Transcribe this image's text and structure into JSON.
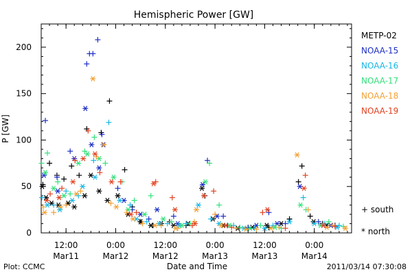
{
  "chart_data": {
    "type": "scatter",
    "title": "Hemispheric Power [GW]",
    "xlabel": "Date and Time",
    "ylabel": "P [GW]",
    "xlim": [
      "2011-03-11T06:00",
      "2011-03-14T09:00"
    ],
    "ylim": [
      0,
      225
    ],
    "yticks": [
      0,
      50,
      100,
      150,
      200
    ],
    "xticks": [
      {
        "t": "2011-03-11T12:00",
        "time": "12:00",
        "date": "Mar11"
      },
      {
        "t": "2011-03-12T00:00",
        "time": "0:00",
        "date": "Mar12"
      },
      {
        "t": "2011-03-12T12:00",
        "time": "12:00",
        "date": "Mar12"
      },
      {
        "t": "2011-03-13T00:00",
        "time": "0:00",
        "date": "Mar13"
      },
      {
        "t": "2011-03-13T12:00",
        "time": "12:00",
        "date": "Mar13"
      },
      {
        "t": "2011-03-14T00:00",
        "time": "0:00",
        "date": "Mar14"
      }
    ],
    "hemisphere_markers": [
      {
        "symbol": "+",
        "label": "south"
      },
      {
        "symbol": "*",
        "label": "north"
      }
    ],
    "series": [
      {
        "name": "METP-02",
        "color": "#000000",
        "south": [
          {
            "t": "2011-03-11T06:24",
            "v": 52
          },
          {
            "t": "2011-03-11T08:00",
            "v": 75
          },
          {
            "t": "2011-03-11T09:48",
            "v": 62
          },
          {
            "t": "2011-03-11T11:30",
            "v": 58
          },
          {
            "t": "2011-03-11T13:20",
            "v": 72
          },
          {
            "t": "2011-03-11T15:10",
            "v": 62
          },
          {
            "t": "2011-03-11T17:00",
            "v": 112
          },
          {
            "t": "2011-03-11T20:30",
            "v": 108
          },
          {
            "t": "2011-03-11T22:30",
            "v": 142
          },
          {
            "t": "2011-03-12T02:10",
            "v": 68
          },
          {
            "t": "2011-03-12T04:00",
            "v": 28
          },
          {
            "t": "2011-03-12T06:00",
            "v": 12
          },
          {
            "t": "2011-03-12T09:00",
            "v": 8
          },
          {
            "t": "2011-03-12T13:00",
            "v": 12
          },
          {
            "t": "2011-03-12T17:00",
            "v": 8
          },
          {
            "t": "2011-03-12T21:30",
            "v": 40
          },
          {
            "t": "2011-03-13T03:00",
            "v": 8
          },
          {
            "t": "2011-03-13T08:00",
            "v": 5
          },
          {
            "t": "2011-03-13T13:00",
            "v": 6
          },
          {
            "t": "2011-03-13T18:00",
            "v": 15
          },
          {
            "t": "2011-03-13T20:10",
            "v": 55
          },
          {
            "t": "2011-03-13T21:00",
            "v": 72
          },
          {
            "t": "2011-03-13T23:00",
            "v": 18
          },
          {
            "t": "2011-03-14T02:00",
            "v": 10
          },
          {
            "t": "2011-03-14T05:00",
            "v": 8
          }
        ],
        "north": [
          {
            "t": "2011-03-11T06:15",
            "v": 50
          },
          {
            "t": "2011-03-11T07:10",
            "v": 38
          },
          {
            "t": "2011-03-11T08:30",
            "v": 32
          },
          {
            "t": "2011-03-11T10:10",
            "v": 30
          },
          {
            "t": "2011-03-11T12:30",
            "v": 32
          },
          {
            "t": "2011-03-11T14:00",
            "v": 28
          },
          {
            "t": "2011-03-11T16:30",
            "v": 40
          },
          {
            "t": "2011-03-11T18:00",
            "v": 62
          },
          {
            "t": "2011-03-11T20:00",
            "v": 45
          },
          {
            "t": "2011-03-11T22:00",
            "v": 35
          },
          {
            "t": "2011-03-12T00:30",
            "v": 40
          },
          {
            "t": "2011-03-12T03:00",
            "v": 20
          },
          {
            "t": "2011-03-12T06:00",
            "v": 12
          },
          {
            "t": "2011-03-12T08:30",
            "v": 8
          },
          {
            "t": "2011-03-12T11:00",
            "v": 10
          },
          {
            "t": "2011-03-12T14:00",
            "v": 8
          },
          {
            "t": "2011-03-12T17:30",
            "v": 10
          },
          {
            "t": "2011-03-12T20:50",
            "v": 48
          },
          {
            "t": "2011-03-12T23:30",
            "v": 15
          },
          {
            "t": "2011-03-13T02:00",
            "v": 8
          },
          {
            "t": "2011-03-13T05:30",
            "v": 5
          },
          {
            "t": "2011-03-13T09:00",
            "v": 6
          },
          {
            "t": "2011-03-13T12:30",
            "v": 8
          },
          {
            "t": "2011-03-13T16:00",
            "v": 10
          },
          {
            "t": "2011-03-13T23:50",
            "v": 12
          },
          {
            "t": "2011-03-14T03:00",
            "v": 8
          }
        ]
      },
      {
        "name": "NOAA-15",
        "color": "#1c2ec4",
        "south": [
          {
            "t": "2011-03-11T07:00",
            "v": 121
          },
          {
            "t": "2011-03-11T09:50",
            "v": 60
          },
          {
            "t": "2011-03-11T13:00",
            "v": 88
          },
          {
            "t": "2011-03-11T17:00",
            "v": 182
          },
          {
            "t": "2011-03-11T17:40",
            "v": 193
          },
          {
            "t": "2011-03-11T18:30",
            "v": 193
          },
          {
            "t": "2011-03-11T19:40",
            "v": 208
          },
          {
            "t": "2011-03-11T20:40",
            "v": 106
          },
          {
            "t": "2011-03-12T00:30",
            "v": 48
          },
          {
            "t": "2011-03-12T04:00",
            "v": 25
          },
          {
            "t": "2011-03-12T08:00",
            "v": 15
          },
          {
            "t": "2011-03-12T14:00",
            "v": 18
          },
          {
            "t": "2011-03-12T22:10",
            "v": 78
          },
          {
            "t": "2011-03-13T02:00",
            "v": 18
          },
          {
            "t": "2011-03-13T08:00",
            "v": 6
          },
          {
            "t": "2011-03-13T13:00",
            "v": 22
          },
          {
            "t": "2011-03-13T17:00",
            "v": 10
          },
          {
            "t": "2011-03-14T01:00",
            "v": 12
          }
        ],
        "north": [
          {
            "t": "2011-03-11T06:40",
            "v": 62
          },
          {
            "t": "2011-03-11T10:00",
            "v": 45
          },
          {
            "t": "2011-03-11T14:00",
            "v": 80
          },
          {
            "t": "2011-03-11T16:40",
            "v": 134
          },
          {
            "t": "2011-03-11T18:10",
            "v": 95
          },
          {
            "t": "2011-03-11T20:00",
            "v": 70
          },
          {
            "t": "2011-03-11T21:00",
            "v": 95
          },
          {
            "t": "2011-03-12T02:00",
            "v": 35
          },
          {
            "t": "2011-03-12T06:00",
            "v": 20
          },
          {
            "t": "2011-03-12T10:00",
            "v": 25
          },
          {
            "t": "2011-03-12T15:00",
            "v": 10
          },
          {
            "t": "2011-03-12T21:00",
            "v": 52
          },
          {
            "t": "2011-03-13T00:30",
            "v": 18
          },
          {
            "t": "2011-03-13T10:00",
            "v": 8
          },
          {
            "t": "2011-03-13T15:00",
            "v": 10
          },
          {
            "t": "2011-03-13T20:30",
            "v": 50
          },
          {
            "t": "2011-03-14T04:00",
            "v": 8
          }
        ]
      },
      {
        "name": "NOAA-16",
        "color": "#17b6e3",
        "south": [
          {
            "t": "2011-03-11T06:10",
            "v": 38
          },
          {
            "t": "2011-03-11T09:00",
            "v": 30
          },
          {
            "t": "2011-03-11T12:00",
            "v": 45
          },
          {
            "t": "2011-03-11T15:00",
            "v": 40
          },
          {
            "t": "2011-03-11T18:40",
            "v": 78
          },
          {
            "t": "2011-03-11T22:20",
            "v": 119
          },
          {
            "t": "2011-03-12T03:30",
            "v": 30
          },
          {
            "t": "2011-03-12T07:30",
            "v": 12
          },
          {
            "t": "2011-03-12T12:30",
            "v": 10
          },
          {
            "t": "2011-03-12T17:00",
            "v": 10
          },
          {
            "t": "2011-03-12T23:00",
            "v": 15
          },
          {
            "t": "2011-03-13T04:30",
            "v": 8
          },
          {
            "t": "2011-03-13T09:30",
            "v": 5
          },
          {
            "t": "2011-03-13T14:00",
            "v": 8
          },
          {
            "t": "2011-03-13T21:20",
            "v": 38
          },
          {
            "t": "2011-03-14T02:30",
            "v": 10
          },
          {
            "t": "2011-03-14T06:00",
            "v": 8
          }
        ],
        "north": [
          {
            "t": "2011-03-11T07:30",
            "v": 30
          },
          {
            "t": "2011-03-11T10:30",
            "v": 25
          },
          {
            "t": "2011-03-11T13:30",
            "v": 35
          },
          {
            "t": "2011-03-11T16:00",
            "v": 50
          },
          {
            "t": "2011-03-11T19:00",
            "v": 60
          },
          {
            "t": "2011-03-12T01:00",
            "v": 35
          },
          {
            "t": "2011-03-12T05:00",
            "v": 15
          },
          {
            "t": "2011-03-12T10:30",
            "v": 10
          },
          {
            "t": "2011-03-12T15:30",
            "v": 8
          },
          {
            "t": "2011-03-12T20:00",
            "v": 30
          },
          {
            "t": "2011-03-13T01:00",
            "v": 10
          },
          {
            "t": "2011-03-13T07:00",
            "v": 5
          },
          {
            "t": "2011-03-13T12:00",
            "v": 5
          },
          {
            "t": "2011-03-13T18:00",
            "v": 12
          },
          {
            "t": "2011-03-14T00:00",
            "v": 10
          },
          {
            "t": "2011-03-14T05:30",
            "v": 6
          }
        ]
      },
      {
        "name": "NOAA-17",
        "color": "#33e07a",
        "south": [
          {
            "t": "2011-03-11T06:05",
            "v": 75
          },
          {
            "t": "2011-03-11T07:30",
            "v": 86
          },
          {
            "t": "2011-03-11T10:00",
            "v": 55
          },
          {
            "t": "2011-03-11T13:00",
            "v": 42
          },
          {
            "t": "2011-03-11T16:30",
            "v": 88
          },
          {
            "t": "2011-03-11T18:50",
            "v": 103
          },
          {
            "t": "2011-03-11T21:30",
            "v": 75
          },
          {
            "t": "2011-03-12T01:30",
            "v": 55
          },
          {
            "t": "2011-03-12T04:30",
            "v": 35
          },
          {
            "t": "2011-03-12T08:30",
            "v": 40
          },
          {
            "t": "2011-03-12T13:30",
            "v": 12
          },
          {
            "t": "2011-03-12T18:00",
            "v": 10
          },
          {
            "t": "2011-03-12T22:40",
            "v": 75
          },
          {
            "t": "2011-03-13T01:00",
            "v": 30
          },
          {
            "t": "2011-03-13T06:00",
            "v": 6
          },
          {
            "t": "2011-03-13T11:00",
            "v": 8
          },
          {
            "t": "2011-03-13T16:00",
            "v": 5
          },
          {
            "t": "2011-03-13T22:00",
            "v": 25
          },
          {
            "t": "2011-03-14T03:30",
            "v": 12
          },
          {
            "t": "2011-03-14T07:00",
            "v": 7
          }
        ],
        "north": [
          {
            "t": "2011-03-11T07:00",
            "v": 65
          },
          {
            "t": "2011-03-11T09:00",
            "v": 48
          },
          {
            "t": "2011-03-11T11:30",
            "v": 40
          },
          {
            "t": "2011-03-11T15:00",
            "v": 75
          },
          {
            "t": "2011-03-11T17:10",
            "v": 85
          },
          {
            "t": "2011-03-11T20:00",
            "v": 80
          },
          {
            "t": "2011-03-11T23:30",
            "v": 60
          },
          {
            "t": "2011-03-12T03:00",
            "v": 25
          },
          {
            "t": "2011-03-12T07:00",
            "v": 20
          },
          {
            "t": "2011-03-12T11:30",
            "v": 15
          },
          {
            "t": "2011-03-12T16:00",
            "v": 8
          },
          {
            "t": "2011-03-12T21:40",
            "v": 55
          },
          {
            "t": "2011-03-13T03:30",
            "v": 8
          },
          {
            "t": "2011-03-13T08:30",
            "v": 5
          },
          {
            "t": "2011-03-13T14:30",
            "v": 6
          },
          {
            "t": "2011-03-13T20:40",
            "v": 30
          },
          {
            "t": "2011-03-14T01:30",
            "v": 8
          }
        ]
      },
      {
        "name": "NOAA-18",
        "color": "#f2a033",
        "south": [
          {
            "t": "2011-03-11T06:30",
            "v": 28
          },
          {
            "t": "2011-03-11T09:00",
            "v": 22
          },
          {
            "t": "2011-03-11T12:00",
            "v": 30
          },
          {
            "t": "2011-03-11T15:30",
            "v": 45
          },
          {
            "t": "2011-03-11T19:20",
            "v": 82
          },
          {
            "t": "2011-03-11T22:50",
            "v": 32
          },
          {
            "t": "2011-03-12T02:40",
            "v": 22
          },
          {
            "t": "2011-03-12T06:30",
            "v": 10
          },
          {
            "t": "2011-03-12T11:00",
            "v": 8
          },
          {
            "t": "2011-03-12T15:00",
            "v": 5
          },
          {
            "t": "2011-03-12T19:00",
            "v": 12
          },
          {
            "t": "2011-03-13T00:00",
            "v": 20
          },
          {
            "t": "2011-03-13T05:00",
            "v": 5
          },
          {
            "t": "2011-03-13T10:00",
            "v": 4
          },
          {
            "t": "2011-03-13T15:30",
            "v": 6
          },
          {
            "t": "2011-03-13T22:30",
            "v": 25
          },
          {
            "t": "2011-03-14T04:30",
            "v": 8
          }
        ],
        "north": [
          {
            "t": "2011-03-11T06:50",
            "v": 22
          },
          {
            "t": "2011-03-11T10:40",
            "v": 28
          },
          {
            "t": "2011-03-11T14:30",
            "v": 42
          },
          {
            "t": "2011-03-11T18:30",
            "v": 166
          },
          {
            "t": "2011-03-11T21:10",
            "v": 95
          },
          {
            "t": "2011-03-12T00:10",
            "v": 28
          },
          {
            "t": "2011-03-12T04:10",
            "v": 15
          },
          {
            "t": "2011-03-12T09:30",
            "v": 8
          },
          {
            "t": "2011-03-12T14:30",
            "v": 5
          },
          {
            "t": "2011-03-12T19:30",
            "v": 25
          },
          {
            "t": "2011-03-13T01:30",
            "v": 8
          },
          {
            "t": "2011-03-13T07:30",
            "v": 4
          },
          {
            "t": "2011-03-13T13:30",
            "v": 5
          },
          {
            "t": "2011-03-13T19:50",
            "v": 84
          },
          {
            "t": "2011-03-14T03:00",
            "v": 6
          },
          {
            "t": "2011-03-14T07:30",
            "v": 5
          }
        ]
      },
      {
        "name": "NOAA-19",
        "color": "#e3401e",
        "south": [
          {
            "t": "2011-03-11T08:10",
            "v": 42
          },
          {
            "t": "2011-03-11T11:00",
            "v": 48
          },
          {
            "t": "2011-03-11T14:10",
            "v": 78
          },
          {
            "t": "2011-03-11T17:20",
            "v": 110
          },
          {
            "t": "2011-03-11T20:10",
            "v": 65
          },
          {
            "t": "2011-03-12T01:10",
            "v": 55
          },
          {
            "t": "2011-03-12T05:00",
            "v": 22
          },
          {
            "t": "2011-03-12T09:40",
            "v": 55
          },
          {
            "t": "2011-03-12T13:40",
            "v": 38
          },
          {
            "t": "2011-03-12T18:30",
            "v": 8
          },
          {
            "t": "2011-03-12T23:40",
            "v": 45
          },
          {
            "t": "2011-03-13T04:00",
            "v": 6
          },
          {
            "t": "2011-03-13T11:30",
            "v": 22
          },
          {
            "t": "2011-03-13T17:00",
            "v": 5
          },
          {
            "t": "2011-03-13T21:50",
            "v": 62
          },
          {
            "t": "2011-03-14T05:00",
            "v": 7
          }
        ],
        "north": [
          {
            "t": "2011-03-11T07:20",
            "v": 35
          },
          {
            "t": "2011-03-11T10:20",
            "v": 38
          },
          {
            "t": "2011-03-11T13:40",
            "v": 55
          },
          {
            "t": "2011-03-11T16:10",
            "v": 80
          },
          {
            "t": "2011-03-11T19:00",
            "v": 85
          },
          {
            "t": "2011-03-11T23:00",
            "v": 55
          },
          {
            "t": "2011-03-12T03:40",
            "v": 20
          },
          {
            "t": "2011-03-12T09:10",
            "v": 53
          },
          {
            "t": "2011-03-12T14:20",
            "v": 25
          },
          {
            "t": "2011-03-12T19:10",
            "v": 10
          },
          {
            "t": "2011-03-12T21:20",
            "v": 40
          },
          {
            "t": "2011-03-13T02:40",
            "v": 8
          },
          {
            "t": "2011-03-13T12:40",
            "v": 25
          },
          {
            "t": "2011-03-13T21:30",
            "v": 48
          },
          {
            "t": "2011-03-14T02:10",
            "v": 8
          }
        ]
      }
    ]
  },
  "footer": {
    "credit": "Plot: CCMC",
    "timestamp": "2011/03/14 07:30:08"
  }
}
